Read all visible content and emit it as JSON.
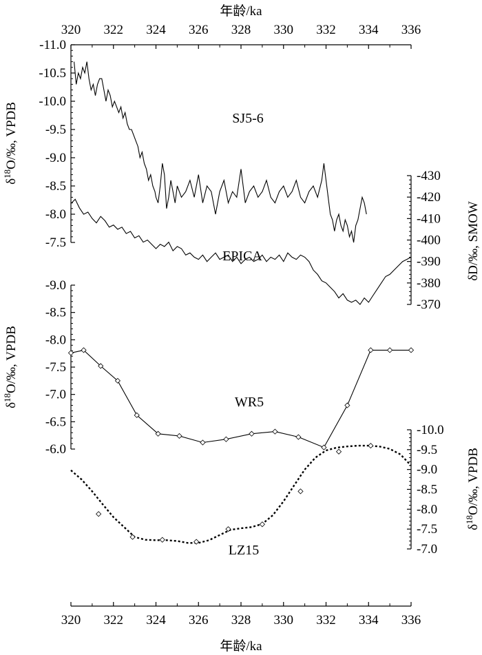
{
  "chart_data": [
    {
      "type": "line",
      "series_label": "SJ5-6",
      "x_axis_label": "年龄/ka",
      "y_axis_label": "δ18O/‰, VPDB",
      "xlim": [
        320,
        336
      ],
      "ylim": [
        -7.5,
        -11.0
      ],
      "y_reversed": true,
      "y_ticks": [
        "-11.0",
        "-10.5",
        "-10.0",
        "-9.5",
        "-9.0",
        "-8.5",
        "-8.0",
        "-7.5"
      ],
      "x_ticks": [
        "320",
        "322",
        "324",
        "326",
        "328",
        "330",
        "332",
        "334",
        "336"
      ],
      "x": [
        320.15,
        320.25,
        320.35,
        320.45,
        320.55,
        320.65,
        320.75,
        320.85,
        320.95,
        321.05,
        321.15,
        321.25,
        321.35,
        321.45,
        321.55,
        321.65,
        321.75,
        321.85,
        321.95,
        322.05,
        322.15,
        322.25,
        322.35,
        322.45,
        322.55,
        322.65,
        322.75,
        322.85,
        322.95,
        323.05,
        323.15,
        323.25,
        323.35,
        323.45,
        323.55,
        323.65,
        323.75,
        323.85,
        323.95,
        324.0,
        324.1,
        324.2,
        324.3,
        324.4,
        324.5,
        324.6,
        324.7,
        324.8,
        324.9,
        325.0,
        325.2,
        325.4,
        325.6,
        325.8,
        326.0,
        326.2,
        326.4,
        326.6,
        326.8,
        327.0,
        327.2,
        327.4,
        327.6,
        327.8,
        328.0,
        328.2,
        328.4,
        328.6,
        328.8,
        329.0,
        329.2,
        329.4,
        329.6,
        329.8,
        330.0,
        330.2,
        330.4,
        330.6,
        330.8,
        331.0,
        331.2,
        331.4,
        331.6,
        331.8,
        331.9,
        332.0,
        332.1,
        332.2,
        332.3,
        332.4,
        332.5,
        332.6,
        332.7,
        332.8,
        332.9,
        333.0,
        333.1,
        333.2,
        333.3,
        333.4,
        333.5,
        333.6,
        333.7,
        333.8,
        333.9
      ],
      "y": [
        -10.7,
        -10.3,
        -10.5,
        -10.4,
        -10.6,
        -10.5,
        -10.7,
        -10.4,
        -10.2,
        -10.3,
        -10.1,
        -10.3,
        -10.4,
        -10.4,
        -10.2,
        -10.0,
        -10.2,
        -10.1,
        -9.9,
        -10.0,
        -9.9,
        -9.8,
        -9.9,
        -9.7,
        -9.8,
        -9.6,
        -9.5,
        -9.5,
        -9.4,
        -9.3,
        -9.2,
        -9.0,
        -9.1,
        -8.9,
        -8.8,
        -8.6,
        -8.7,
        -8.5,
        -8.4,
        -8.3,
        -8.2,
        -8.5,
        -8.9,
        -8.7,
        -8.1,
        -8.3,
        -8.6,
        -8.4,
        -8.2,
        -8.5,
        -8.3,
        -8.4,
        -8.6,
        -8.3,
        -8.7,
        -8.2,
        -8.5,
        -8.4,
        -8.0,
        -8.4,
        -8.6,
        -8.2,
        -8.4,
        -8.3,
        -8.8,
        -8.2,
        -8.4,
        -8.5,
        -8.3,
        -8.4,
        -8.6,
        -8.3,
        -8.2,
        -8.4,
        -8.5,
        -8.3,
        -8.4,
        -8.6,
        -8.3,
        -8.2,
        -8.4,
        -8.5,
        -8.3,
        -8.6,
        -8.9,
        -8.6,
        -8.3,
        -8.0,
        -7.9,
        -7.7,
        -7.9,
        -8.0,
        -7.8,
        -7.7,
        -7.9,
        -7.8,
        -7.6,
        -7.7,
        -7.5,
        -7.8,
        -7.9,
        -8.1,
        -8.3,
        -8.2,
        -8.0
      ]
    },
    {
      "type": "line",
      "series_label": "EPICA",
      "y_axis_label": "δD/‰, SMOW",
      "xlim": [
        320,
        336
      ],
      "ylim": [
        -370,
        -430
      ],
      "y_reversed": true,
      "y_ticks": [
        "-430",
        "-420",
        "-410",
        "-400",
        "-390",
        "-380",
        "-370"
      ],
      "x": [
        320.0,
        320.2,
        320.4,
        320.6,
        320.8,
        321.0,
        321.2,
        321.4,
        321.6,
        321.8,
        322.0,
        322.2,
        322.4,
        322.6,
        322.8,
        323.0,
        323.2,
        323.4,
        323.6,
        323.8,
        324.0,
        324.2,
        324.4,
        324.6,
        324.8,
        325.0,
        325.2,
        325.4,
        325.6,
        325.8,
        326.0,
        326.2,
        326.4,
        326.6,
        326.8,
        327.0,
        327.2,
        327.4,
        327.6,
        327.8,
        328.0,
        328.2,
        328.4,
        328.6,
        328.8,
        329.0,
        329.2,
        329.4,
        329.6,
        329.8,
        330.0,
        330.2,
        330.4,
        330.6,
        330.8,
        331.0,
        331.2,
        331.4,
        331.6,
        331.8,
        332.0,
        332.2,
        332.4,
        332.6,
        332.8,
        333.0,
        333.2,
        333.4,
        333.6,
        333.8,
        334.0,
        334.2,
        334.4,
        334.6,
        334.8,
        335.0,
        335.2,
        335.4,
        335.6,
        335.8,
        336.0
      ],
      "y": [
        -417,
        -419,
        -415,
        -412,
        -413,
        -410,
        -408,
        -411,
        -409,
        -406,
        -407,
        -405,
        -406,
        -403,
        -404,
        -401,
        -402,
        -399,
        -400,
        -398,
        -396,
        -398,
        -397,
        -399,
        -395,
        -397,
        -396,
        -393,
        -394,
        -392,
        -391,
        -393,
        -390,
        -392,
        -394,
        -391,
        -392,
        -393,
        -390,
        -392,
        -389,
        -391,
        -392,
        -390,
        -391,
        -393,
        -390,
        -392,
        -391,
        -393,
        -390,
        -394,
        -392,
        -391,
        -393,
        -392,
        -390,
        -386,
        -384,
        -381,
        -380,
        -378,
        -376,
        -373,
        -375,
        -372,
        -371,
        -372,
        -370,
        -373,
        -371,
        -374,
        -377,
        -380,
        -383,
        -384,
        -386,
        -388,
        -390,
        -391,
        -392
      ]
    },
    {
      "type": "line",
      "series_label": "WR5",
      "y_axis_label": "δ18O/‰, VPDB",
      "xlim": [
        320,
        336
      ],
      "ylim": [
        -6.0,
        -9.0
      ],
      "y_reversed": true,
      "y_ticks": [
        "-9.0",
        "-8.5",
        "-8.0",
        "-7.5",
        "-7.0",
        "-6.5",
        "-6.0"
      ],
      "x": [
        320.0,
        320.6,
        321.4,
        322.2,
        323.1,
        324.1,
        325.1,
        326.2,
        327.3,
        328.5,
        329.6,
        330.7,
        331.9,
        333.0,
        334.1,
        335.0,
        336.0
      ],
      "y": [
        -7.76,
        -7.81,
        -7.52,
        -7.25,
        -6.62,
        -6.28,
        -6.24,
        -6.12,
        -6.18,
        -6.28,
        -6.32,
        -6.22,
        -6.03,
        -6.8,
        -7.81,
        -7.81,
        -7.81
      ]
    },
    {
      "type": "line",
      "series_label": "LZ15",
      "y_axis_label": "δ18O/‰, VPDB",
      "xlim": [
        320,
        336
      ],
      "ylim": [
        -7.0,
        -10.0
      ],
      "y_reversed": true,
      "y_ticks": [
        "-10.0",
        "-9.5",
        "-9.0",
        "-8.5",
        "-8.0",
        "-7.5",
        "-7.0"
      ],
      "x": [
        320.0,
        320.5,
        321.0,
        321.5,
        322.0,
        322.5,
        323.0,
        323.5,
        324.0,
        324.5,
        325.0,
        325.5,
        326.0,
        326.5,
        327.0,
        327.5,
        328.0,
        328.5,
        329.0,
        329.5,
        330.0,
        330.5,
        331.0,
        331.5,
        332.0,
        332.5,
        333.0,
        333.5,
        334.0,
        334.5,
        335.0,
        335.5,
        336.0
      ],
      "y": [
        -8.98,
        -8.75,
        -8.45,
        -8.12,
        -7.8,
        -7.55,
        -7.3,
        -7.23,
        -7.22,
        -7.22,
        -7.2,
        -7.15,
        -7.15,
        -7.22,
        -7.35,
        -7.48,
        -7.52,
        -7.55,
        -7.63,
        -7.85,
        -8.2,
        -8.6,
        -9.0,
        -9.3,
        -9.48,
        -9.55,
        -9.58,
        -9.6,
        -9.6,
        -9.58,
        -9.52,
        -9.38,
        -9.1
      ],
      "markers_x": [
        321.3,
        322.9,
        324.3,
        325.9,
        327.4,
        329.0,
        330.8,
        332.6,
        334.1
      ],
      "markers_y": [
        -7.88,
        -7.3,
        -7.23,
        -7.18,
        -7.5,
        -7.62,
        -8.45,
        -9.45,
        -9.6
      ]
    }
  ]
}
